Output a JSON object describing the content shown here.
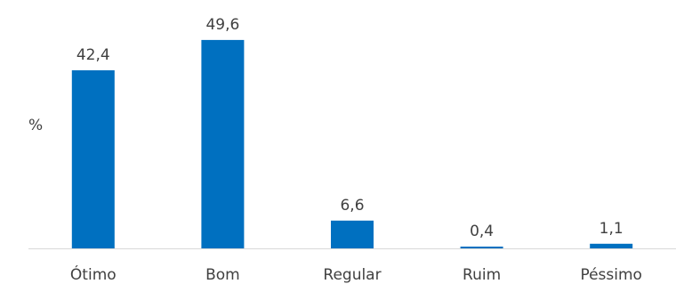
{
  "chart_data": {
    "type": "bar",
    "ylabel": "%",
    "categories": [
      "Ótimo",
      "Bom",
      "Regular",
      "Ruim",
      "Péssimo"
    ],
    "values": [
      42.4,
      49.6,
      6.6,
      0.4,
      1.1
    ],
    "data_labels": [
      "42,4",
      "49,6",
      "6,6",
      "0,4",
      "1,1"
    ],
    "grid": false,
    "legend": "none",
    "bar_color": "#0070C0",
    "axis_color": "#D9D9D9",
    "text_color": "#404040"
  }
}
